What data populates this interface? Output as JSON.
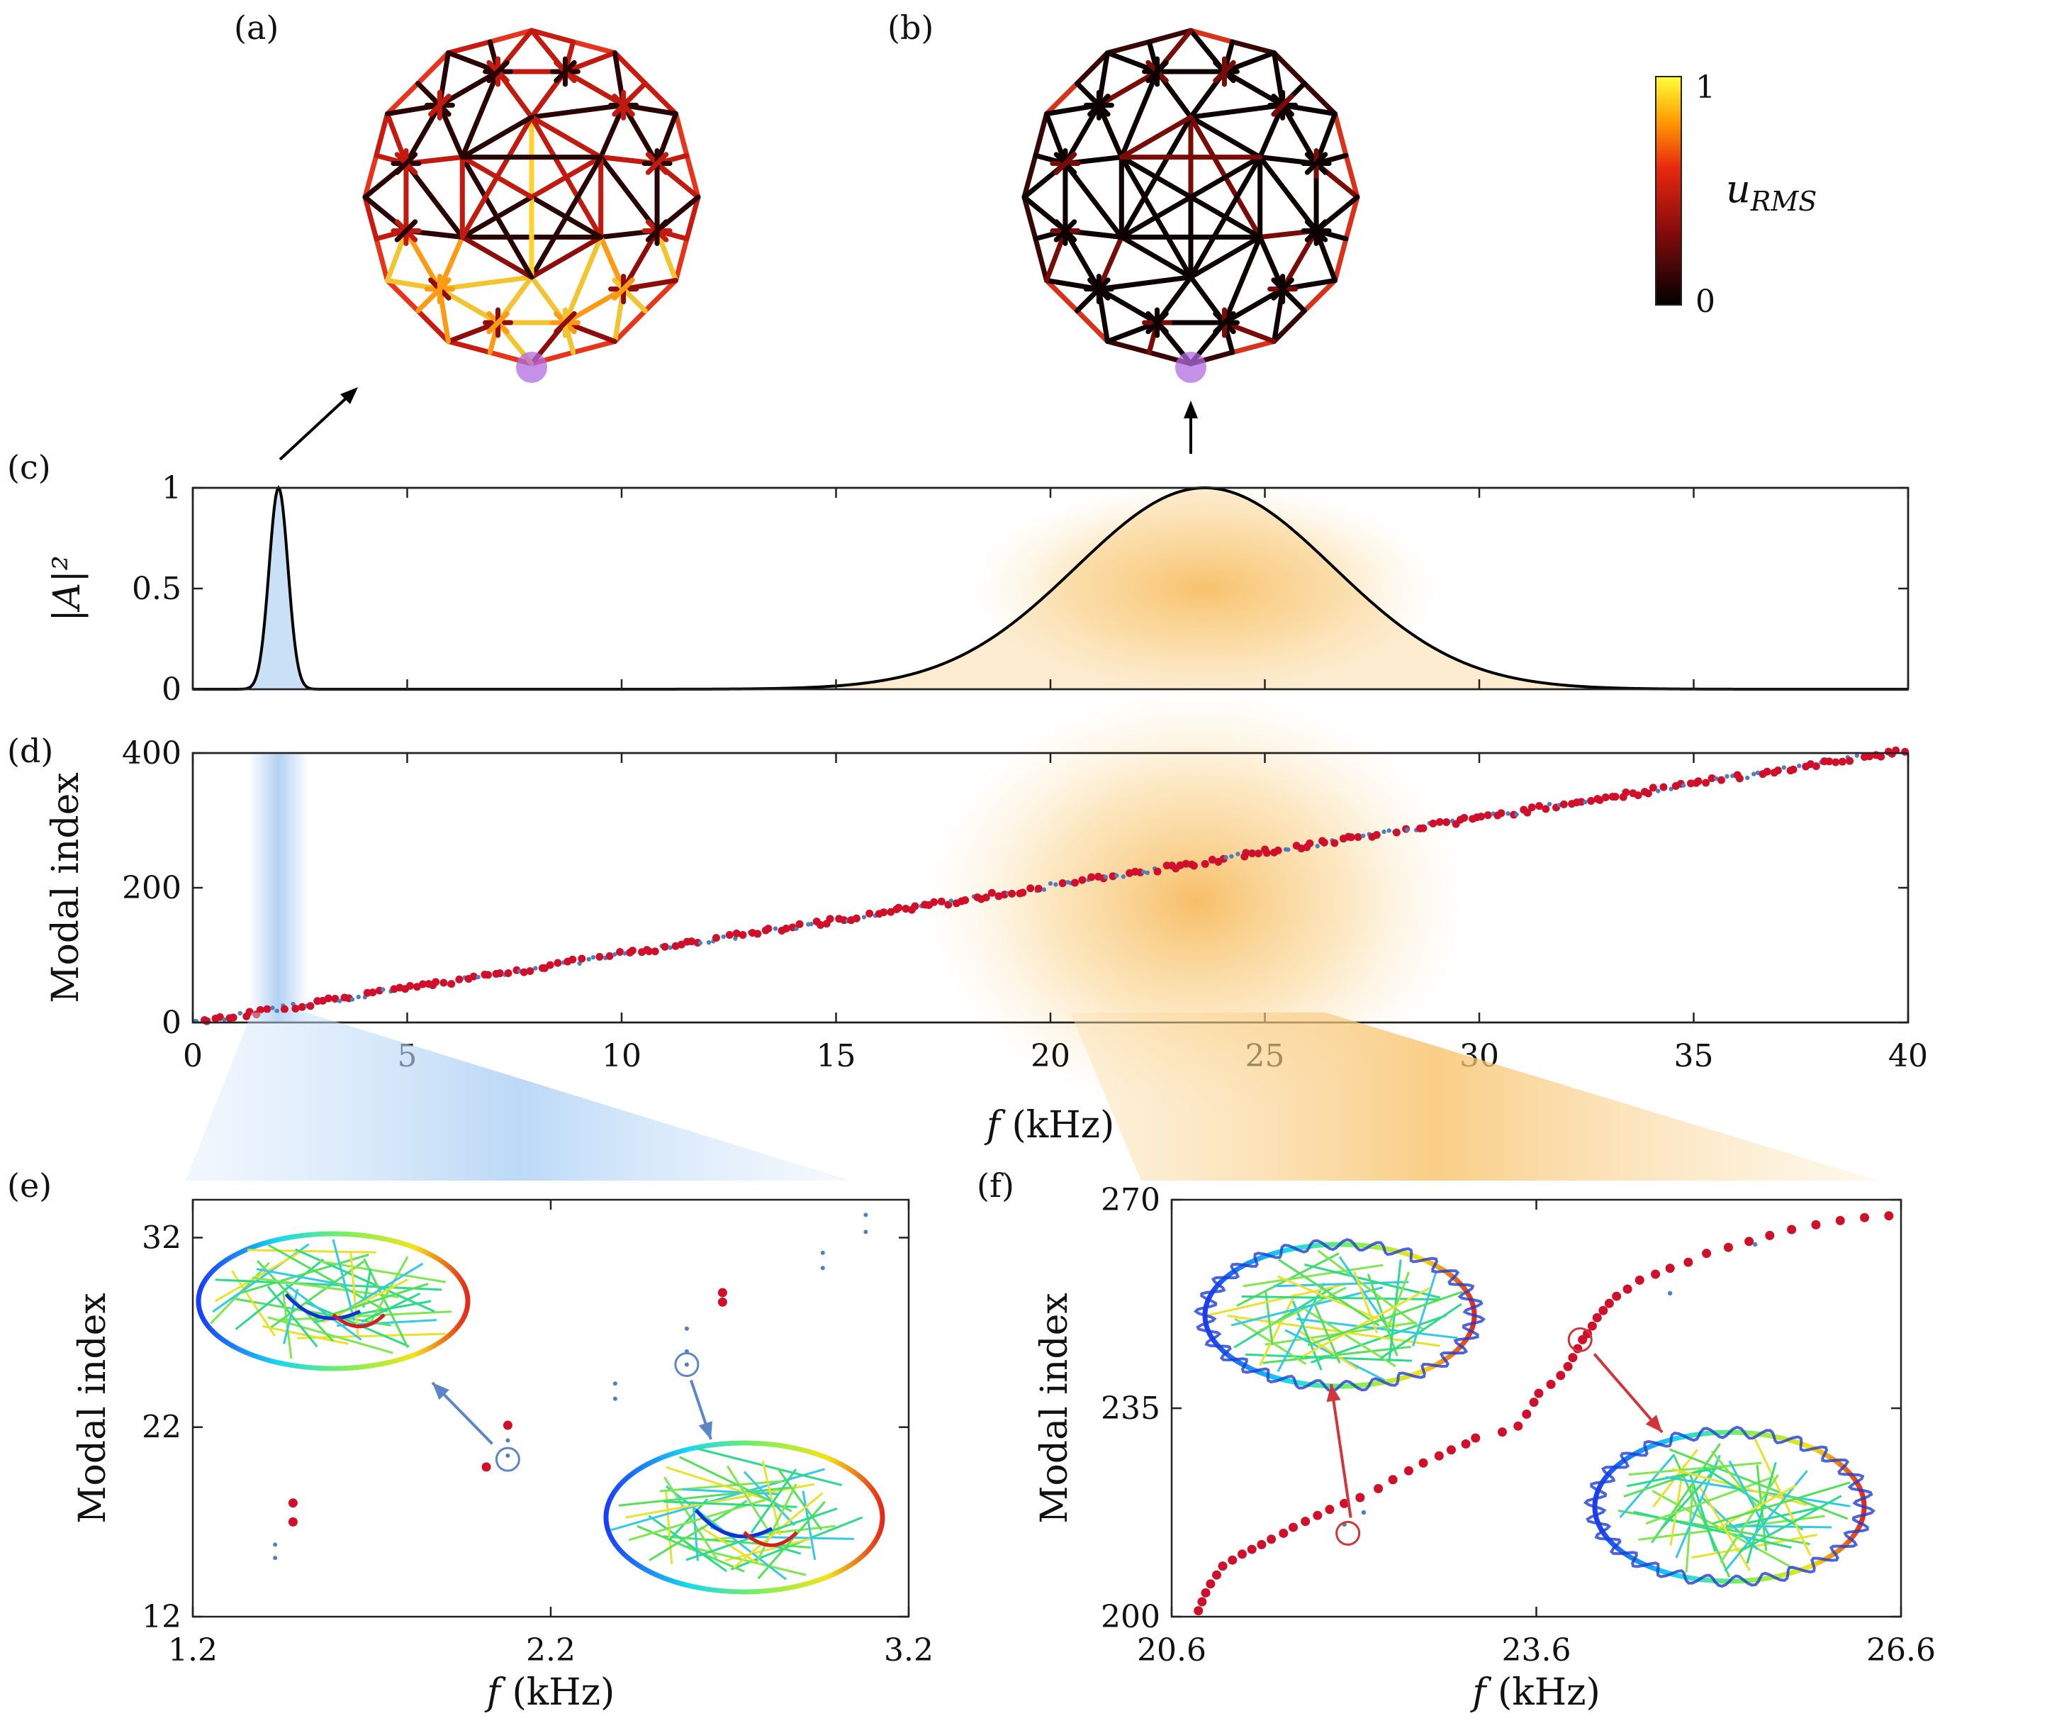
{
  "colorbar": {
    "top": "1",
    "bottom": "0",
    "label": "u",
    "label_sub": "RMS"
  },
  "chart_data": [
    {
      "id": "c",
      "panel_label": "(c)",
      "type": "line",
      "ylabel": "|A|²",
      "xlim": [
        0,
        40
      ],
      "ylim": [
        0,
        1
      ],
      "yticks": [
        "0",
        "0.5",
        "1"
      ],
      "series": [
        {
          "peak_center_kHz": 2.0,
          "peak_sigma_kHz": 0.22,
          "peak_value": 1,
          "fill_color": "#bcd8f5"
        },
        {
          "peak_center_kHz": 23.6,
          "peak_sigma_kHz": 3.0,
          "peak_value": 1,
          "fill_color": "#f8c878"
        }
      ]
    },
    {
      "id": "d",
      "panel_label": "(d)",
      "type": "scatter",
      "xlabel_var": "f",
      "xlabel_unit": "(kHz)",
      "ylabel": "Modal index",
      "xlim": [
        0,
        40
      ],
      "ylim": [
        0,
        400
      ],
      "xticks": [
        "0",
        "5",
        "10",
        "15",
        "20",
        "25",
        "30",
        "35",
        "40"
      ],
      "yticks": [
        "0",
        "200",
        "400"
      ],
      "approx_trend": {
        "x": [
          0,
          40
        ],
        "y": [
          0,
          405
        ]
      },
      "colors": {
        "red": "#d0102a",
        "blue": "#4f7fbf"
      }
    },
    {
      "id": "e",
      "panel_label": "(e)",
      "type": "scatter",
      "xlabel_var": "f",
      "xlabel_unit": "(kHz)",
      "ylabel": "Modal index",
      "xlim": [
        1.2,
        3.2
      ],
      "ylim": [
        12,
        34
      ],
      "xticks": [
        "1.2",
        "2.2",
        "3.2"
      ],
      "yticks": [
        "12",
        "22",
        "32"
      ],
      "red_points": [
        [
          1.48,
          17
        ],
        [
          1.48,
          18
        ],
        [
          2.02,
          19.9
        ],
        [
          2.08,
          22.1
        ],
        [
          2.68,
          28.6
        ],
        [
          2.68,
          29.1
        ]
      ],
      "blue_points": [
        [
          1.43,
          15.1
        ],
        [
          1.43,
          15.8
        ],
        [
          2.08,
          20.5
        ],
        [
          2.08,
          21.3
        ],
        [
          2.38,
          23.5
        ],
        [
          2.38,
          24.3
        ],
        [
          2.58,
          25.3
        ],
        [
          2.58,
          26.0
        ],
        [
          2.58,
          27.2
        ],
        [
          2.96,
          30.4
        ],
        [
          2.96,
          31.2
        ],
        [
          3.08,
          32.3
        ],
        [
          3.08,
          33.2
        ]
      ],
      "highlight": [
        [
          2.08,
          20.3
        ],
        [
          2.58,
          25.3
        ]
      ],
      "arrow_color": "#5b86c8"
    },
    {
      "id": "f",
      "panel_label": "(f)",
      "type": "scatter",
      "xlabel_var": "f",
      "xlabel_unit": "(kHz)",
      "ylabel": "Modal index",
      "xlim": [
        20.6,
        26.6
      ],
      "ylim": [
        200,
        270
      ],
      "xticks": [
        "20.6",
        "23.6",
        "26.6"
      ],
      "yticks": [
        "200",
        "235",
        "270"
      ],
      "red_points": [
        [
          20.82,
          201
        ],
        [
          20.85,
          202.5
        ],
        [
          20.88,
          204
        ],
        [
          20.92,
          205.5
        ],
        [
          20.97,
          207
        ],
        [
          21.02,
          208.5
        ],
        [
          21.1,
          209.5
        ],
        [
          21.18,
          210.5
        ],
        [
          21.26,
          211.3
        ],
        [
          21.34,
          212.1
        ],
        [
          21.42,
          213
        ],
        [
          21.52,
          214
        ],
        [
          21.6,
          215
        ],
        [
          21.7,
          216
        ],
        [
          21.8,
          217
        ],
        [
          21.9,
          218
        ],
        [
          22.02,
          219
        ],
        [
          22.15,
          220
        ],
        [
          22.3,
          221.5
        ],
        [
          22.42,
          223
        ],
        [
          22.55,
          224.5
        ],
        [
          22.67,
          225.8
        ],
        [
          22.8,
          227
        ],
        [
          22.9,
          228
        ],
        [
          23.02,
          229
        ],
        [
          23.1,
          230
        ],
        [
          23.32,
          231
        ],
        [
          23.45,
          232
        ],
        [
          23.52,
          234
        ],
        [
          23.58,
          236
        ],
        [
          23.62,
          237.5
        ],
        [
          23.72,
          239
        ],
        [
          23.8,
          240.5
        ],
        [
          23.86,
          242
        ],
        [
          23.9,
          243.5
        ],
        [
          23.94,
          245
        ],
        [
          23.98,
          246.5
        ],
        [
          24.02,
          247.5
        ],
        [
          24.06,
          248.8
        ],
        [
          24.1,
          250.2
        ],
        [
          24.15,
          251.4
        ],
        [
          24.2,
          252.6
        ],
        [
          24.26,
          253.8
        ],
        [
          24.35,
          255
        ],
        [
          24.45,
          256.5
        ],
        [
          24.58,
          257.5
        ],
        [
          24.7,
          258.5
        ],
        [
          24.85,
          259.5
        ],
        [
          25.0,
          261
        ],
        [
          25.18,
          262
        ],
        [
          25.35,
          263
        ],
        [
          25.52,
          264
        ],
        [
          25.7,
          265
        ],
        [
          25.9,
          265.8
        ],
        [
          26.1,
          266.5
        ],
        [
          26.3,
          267
        ],
        [
          26.5,
          267.3
        ]
      ],
      "blue_points": [
        [
          22.02,
          215.5
        ],
        [
          22.18,
          217.5
        ],
        [
          24.7,
          254.3
        ],
        [
          25.4,
          262.5
        ]
      ],
      "highlight": [
        [
          22.05,
          214.0
        ],
        [
          23.96,
          246.5
        ]
      ],
      "arrow_color": "#d0353a"
    }
  ]
}
